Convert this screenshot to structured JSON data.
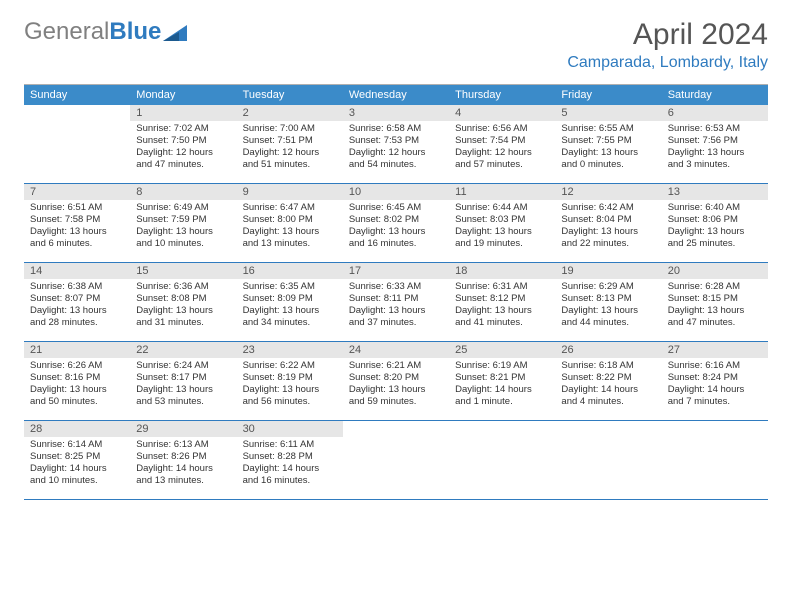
{
  "brand": {
    "part1": "General",
    "part2": "Blue"
  },
  "title": "April 2024",
  "location": "Camparada, Lombardy, Italy",
  "colors": {
    "header_bg": "#3b8bc9",
    "week_border": "#2f7bbf",
    "daynum_bg": "#e6e6e6",
    "text": "#333333",
    "brand_gray": "#808080",
    "brand_blue": "#2f7bbf"
  },
  "day_labels": [
    "Sunday",
    "Monday",
    "Tuesday",
    "Wednesday",
    "Thursday",
    "Friday",
    "Saturday"
  ],
  "weeks": [
    [
      {
        "n": "",
        "lines": []
      },
      {
        "n": "1",
        "lines": [
          "Sunrise: 7:02 AM",
          "Sunset: 7:50 PM",
          "Daylight: 12 hours",
          "and 47 minutes."
        ]
      },
      {
        "n": "2",
        "lines": [
          "Sunrise: 7:00 AM",
          "Sunset: 7:51 PM",
          "Daylight: 12 hours",
          "and 51 minutes."
        ]
      },
      {
        "n": "3",
        "lines": [
          "Sunrise: 6:58 AM",
          "Sunset: 7:53 PM",
          "Daylight: 12 hours",
          "and 54 minutes."
        ]
      },
      {
        "n": "4",
        "lines": [
          "Sunrise: 6:56 AM",
          "Sunset: 7:54 PM",
          "Daylight: 12 hours",
          "and 57 minutes."
        ]
      },
      {
        "n": "5",
        "lines": [
          "Sunrise: 6:55 AM",
          "Sunset: 7:55 PM",
          "Daylight: 13 hours",
          "and 0 minutes."
        ]
      },
      {
        "n": "6",
        "lines": [
          "Sunrise: 6:53 AM",
          "Sunset: 7:56 PM",
          "Daylight: 13 hours",
          "and 3 minutes."
        ]
      }
    ],
    [
      {
        "n": "7",
        "lines": [
          "Sunrise: 6:51 AM",
          "Sunset: 7:58 PM",
          "Daylight: 13 hours",
          "and 6 minutes."
        ]
      },
      {
        "n": "8",
        "lines": [
          "Sunrise: 6:49 AM",
          "Sunset: 7:59 PM",
          "Daylight: 13 hours",
          "and 10 minutes."
        ]
      },
      {
        "n": "9",
        "lines": [
          "Sunrise: 6:47 AM",
          "Sunset: 8:00 PM",
          "Daylight: 13 hours",
          "and 13 minutes."
        ]
      },
      {
        "n": "10",
        "lines": [
          "Sunrise: 6:45 AM",
          "Sunset: 8:02 PM",
          "Daylight: 13 hours",
          "and 16 minutes."
        ]
      },
      {
        "n": "11",
        "lines": [
          "Sunrise: 6:44 AM",
          "Sunset: 8:03 PM",
          "Daylight: 13 hours",
          "and 19 minutes."
        ]
      },
      {
        "n": "12",
        "lines": [
          "Sunrise: 6:42 AM",
          "Sunset: 8:04 PM",
          "Daylight: 13 hours",
          "and 22 minutes."
        ]
      },
      {
        "n": "13",
        "lines": [
          "Sunrise: 6:40 AM",
          "Sunset: 8:06 PM",
          "Daylight: 13 hours",
          "and 25 minutes."
        ]
      }
    ],
    [
      {
        "n": "14",
        "lines": [
          "Sunrise: 6:38 AM",
          "Sunset: 8:07 PM",
          "Daylight: 13 hours",
          "and 28 minutes."
        ]
      },
      {
        "n": "15",
        "lines": [
          "Sunrise: 6:36 AM",
          "Sunset: 8:08 PM",
          "Daylight: 13 hours",
          "and 31 minutes."
        ]
      },
      {
        "n": "16",
        "lines": [
          "Sunrise: 6:35 AM",
          "Sunset: 8:09 PM",
          "Daylight: 13 hours",
          "and 34 minutes."
        ]
      },
      {
        "n": "17",
        "lines": [
          "Sunrise: 6:33 AM",
          "Sunset: 8:11 PM",
          "Daylight: 13 hours",
          "and 37 minutes."
        ]
      },
      {
        "n": "18",
        "lines": [
          "Sunrise: 6:31 AM",
          "Sunset: 8:12 PM",
          "Daylight: 13 hours",
          "and 41 minutes."
        ]
      },
      {
        "n": "19",
        "lines": [
          "Sunrise: 6:29 AM",
          "Sunset: 8:13 PM",
          "Daylight: 13 hours",
          "and 44 minutes."
        ]
      },
      {
        "n": "20",
        "lines": [
          "Sunrise: 6:28 AM",
          "Sunset: 8:15 PM",
          "Daylight: 13 hours",
          "and 47 minutes."
        ]
      }
    ],
    [
      {
        "n": "21",
        "lines": [
          "Sunrise: 6:26 AM",
          "Sunset: 8:16 PM",
          "Daylight: 13 hours",
          "and 50 minutes."
        ]
      },
      {
        "n": "22",
        "lines": [
          "Sunrise: 6:24 AM",
          "Sunset: 8:17 PM",
          "Daylight: 13 hours",
          "and 53 minutes."
        ]
      },
      {
        "n": "23",
        "lines": [
          "Sunrise: 6:22 AM",
          "Sunset: 8:19 PM",
          "Daylight: 13 hours",
          "and 56 minutes."
        ]
      },
      {
        "n": "24",
        "lines": [
          "Sunrise: 6:21 AM",
          "Sunset: 8:20 PM",
          "Daylight: 13 hours",
          "and 59 minutes."
        ]
      },
      {
        "n": "25",
        "lines": [
          "Sunrise: 6:19 AM",
          "Sunset: 8:21 PM",
          "Daylight: 14 hours",
          "and 1 minute."
        ]
      },
      {
        "n": "26",
        "lines": [
          "Sunrise: 6:18 AM",
          "Sunset: 8:22 PM",
          "Daylight: 14 hours",
          "and 4 minutes."
        ]
      },
      {
        "n": "27",
        "lines": [
          "Sunrise: 6:16 AM",
          "Sunset: 8:24 PM",
          "Daylight: 14 hours",
          "and 7 minutes."
        ]
      }
    ],
    [
      {
        "n": "28",
        "lines": [
          "Sunrise: 6:14 AM",
          "Sunset: 8:25 PM",
          "Daylight: 14 hours",
          "and 10 minutes."
        ]
      },
      {
        "n": "29",
        "lines": [
          "Sunrise: 6:13 AM",
          "Sunset: 8:26 PM",
          "Daylight: 14 hours",
          "and 13 minutes."
        ]
      },
      {
        "n": "30",
        "lines": [
          "Sunrise: 6:11 AM",
          "Sunset: 8:28 PM",
          "Daylight: 14 hours",
          "and 16 minutes."
        ]
      },
      {
        "n": "",
        "lines": []
      },
      {
        "n": "",
        "lines": []
      },
      {
        "n": "",
        "lines": []
      },
      {
        "n": "",
        "lines": []
      }
    ]
  ]
}
